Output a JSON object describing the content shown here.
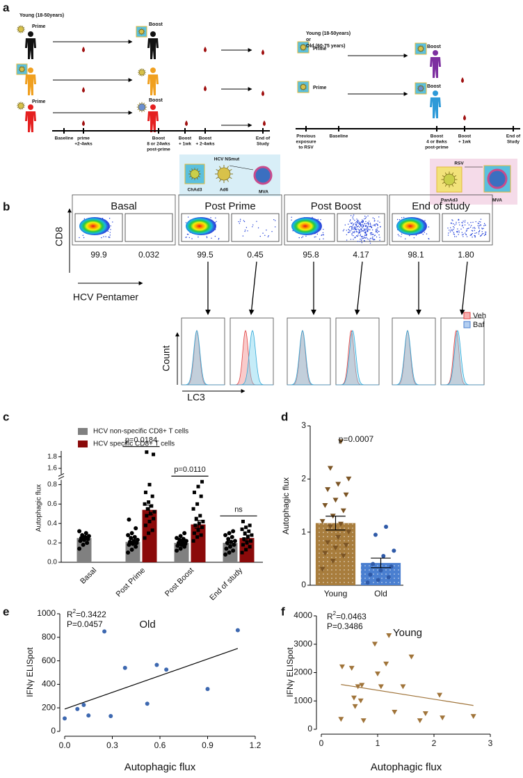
{
  "panel_labels": [
    "a",
    "b",
    "c",
    "d",
    "e",
    "f"
  ],
  "schematic": {
    "left": {
      "cohort": "Young (18-50years)",
      "prime": [
        "Prime",
        "Prime"
      ],
      "boost": [
        "Boost",
        "Boost"
      ],
      "timeline": [
        [
          "Baseline"
        ],
        [
          "prime",
          "+2-4wks"
        ],
        [
          "Boost",
          "8 or 24wks",
          "post-prime"
        ],
        [
          "Boost",
          "+ 1wk"
        ],
        [
          "Boost",
          "+ 2-4wks"
        ],
        [
          "End of",
          "Study"
        ]
      ],
      "vaccines": {
        "insert": "HCV NSmut",
        "vectors": [
          "ChAd3",
          "Ad6",
          "MVA"
        ]
      }
    },
    "right": {
      "cohort": [
        "Young (18-50years)",
        "or",
        "Old (60-75 years)"
      ],
      "prime": [
        "Prime",
        "Prime"
      ],
      "boost": [
        "Boost",
        "Boost"
      ],
      "timeline": [
        [
          "Previous",
          "exposure",
          "to RSV"
        ],
        [
          "Baseline"
        ],
        [
          "Boost",
          "4 or 8wks",
          "post-prime"
        ],
        [
          "Boost",
          "+ 1wk"
        ],
        [
          "End of",
          "Study"
        ]
      ],
      "vaccines": {
        "insert": "RSV",
        "vectors": [
          "PanAd3",
          "MVA"
        ]
      }
    }
  },
  "flow": {
    "timepoints": [
      "Basal",
      "Post Prime",
      "Post Boost",
      "End of study"
    ],
    "percentages": [
      [
        "99.9",
        "0.032"
      ],
      [
        "99.5",
        "0.45"
      ],
      [
        "95.8",
        "4.17"
      ],
      [
        "98.1",
        "1.80"
      ]
    ],
    "y_axis": "CD8",
    "x_axis": "HCV Pentamer",
    "histogram_y_axis": "Count",
    "histogram_x_axis": "LC3",
    "legend": [
      "Veh",
      "Baf"
    ]
  },
  "chart_data": [
    {
      "type": "bar",
      "ylabel": "Autophagic flux",
      "categories": [
        "Basal",
        "Post Prime",
        "Post Boost",
        "End of study"
      ],
      "series": [
        {
          "name": "HCV non-specific CD8+ T cells",
          "color": "#808080",
          "marker": "circle",
          "point_color": "#000000",
          "values": [
            0.25,
            0.21,
            0.2,
            0.2
          ],
          "errors": [
            0.02,
            0.025,
            0.015,
            0.02
          ],
          "points": [
            [
              0.14,
              0.18,
              0.2,
              0.22,
              0.23,
              0.24,
              0.25,
              0.26,
              0.27,
              0.28,
              0.3,
              0.32
            ],
            [
              0.1,
              0.13,
              0.16,
              0.18,
              0.19,
              0.2,
              0.21,
              0.22,
              0.23,
              0.25,
              0.26,
              0.28,
              0.3,
              0.35,
              0.44
            ],
            [
              0.12,
              0.14,
              0.16,
              0.17,
              0.18,
              0.19,
              0.2,
              0.21,
              0.22,
              0.23,
              0.24,
              0.25,
              0.27,
              0.3
            ],
            [
              0.08,
              0.1,
              0.12,
              0.14,
              0.16,
              0.18,
              0.2,
              0.21,
              0.22,
              0.24,
              0.26,
              0.28,
              0.3,
              0.32
            ]
          ]
        },
        {
          "name": "HCV specific CD8+ T cells",
          "color": "#8b0a0a",
          "marker": "square",
          "point_color": "#000000",
          "values": [
            null,
            0.54,
            0.39,
            0.25
          ],
          "errors": [
            null,
            0.05,
            0.04,
            0.03
          ],
          "points": [
            null,
            [
              0.25,
              0.3,
              0.33,
              0.38,
              0.42,
              0.45,
              0.48,
              0.5,
              0.52,
              0.55,
              0.58,
              0.6,
              0.62,
              0.68,
              0.72,
              0.8,
              1.84,
              1.88
            ],
            [
              0.22,
              0.26,
              0.28,
              0.3,
              0.33,
              0.36,
              0.38,
              0.4,
              0.42,
              0.45,
              0.48,
              0.55,
              0.6,
              0.68,
              0.72,
              0.78,
              0.83
            ],
            [
              0.1,
              0.13,
              0.16,
              0.18,
              0.2,
              0.22,
              0.24,
              0.26,
              0.28,
              0.3,
              0.32,
              0.34,
              0.36,
              0.38,
              0.42
            ]
          ]
        }
      ],
      "significance": [
        null,
        "p=0.0184",
        "p=0.0110",
        "ns"
      ],
      "ylim": [
        0,
        1.9
      ],
      "axis_break": [
        0.85,
        1.5
      ],
      "yticks": [
        {
          "value": 0,
          "label": "0.0"
        },
        0.2,
        0.4,
        0.6,
        0.8,
        1.6,
        1.8
      ]
    },
    {
      "type": "bar",
      "ylabel": "Autophagic flux",
      "categories": [
        "Young",
        "Old"
      ],
      "values": [
        1.17,
        0.42
      ],
      "errors": [
        0.13,
        0.09
      ],
      "colors": [
        "#a87d3d",
        "#4a7fd0"
      ],
      "pattern": "dots",
      "markers": [
        "triangle-down",
        "circle"
      ],
      "point_colors": [
        "#7b5424",
        "#2f5aa8"
      ],
      "points": [
        [
          0.3,
          0.45,
          0.55,
          0.6,
          0.7,
          0.75,
          0.8,
          0.9,
          1.0,
          1.1,
          1.15,
          1.2,
          1.3,
          1.4,
          1.5,
          1.6,
          1.7,
          1.8,
          1.9,
          2.0,
          2.2,
          2.7
        ],
        [
          0.05,
          0.1,
          0.15,
          0.2,
          0.28,
          0.35,
          0.4,
          0.55,
          0.65,
          0.95,
          1.1
        ]
      ],
      "annotation": "p=0.0007",
      "ylim": [
        0,
        3
      ],
      "yticks": [
        0,
        1,
        2,
        3
      ]
    },
    {
      "type": "scatter",
      "title": "Old",
      "r_squared": {
        "prefix": "R",
        "sup": "2",
        "value": "=0.3422"
      },
      "p_value": "P=0.0457",
      "xlabel": "Autophagic flux",
      "ylabel": "IFNγ ELISpot",
      "marker": "circle",
      "color": "#3d68b0",
      "x": [
        0,
        0.08,
        0.12,
        0.15,
        0.25,
        0.29,
        0.38,
        0.52,
        0.58,
        0.64,
        0.9,
        1.09
      ],
      "values": [
        110,
        190,
        225,
        135,
        850,
        130,
        540,
        235,
        565,
        525,
        360,
        860
      ],
      "trendline": {
        "x": [
          0,
          1.09
        ],
        "values": [
          190,
          705
        ],
        "color": "#000000"
      },
      "xlim": [
        0,
        1.2
      ],
      "xticks": [
        {
          "value": 0,
          "label": "0.0"
        },
        0.3,
        0.6,
        0.9,
        1.2
      ],
      "ylim": [
        0,
        1000
      ],
      "yticks": [
        0,
        200,
        400,
        600,
        800,
        1000
      ]
    },
    {
      "type": "scatter",
      "title": "Young",
      "r_squared": {
        "prefix": "R",
        "sup": "2",
        "value": "=0.0463"
      },
      "p_value": "P=0.3486",
      "xlabel": "Autophagic flux",
      "ylabel": "IFNγ ELISpot",
      "marker": "triangle-down",
      "color": "#a0743a",
      "x": [
        0.35,
        0.37,
        0.54,
        0.58,
        0.6,
        0.65,
        0.72,
        0.75,
        0.95,
        1.0,
        1.06,
        1.15,
        1.2,
        1.3,
        1.45,
        1.6,
        1.75,
        1.85,
        2.1,
        2.15,
        2.7,
        0.7
      ],
      "values": [
        350,
        2200,
        2150,
        1100,
        800,
        1500,
        1550,
        300,
        3000,
        1950,
        1500,
        2300,
        3300,
        600,
        1500,
        2550,
        300,
        550,
        1200,
        400,
        450,
        1000
      ],
      "trendline": {
        "x": [
          0.35,
          2.7
        ],
        "values": [
          1580,
          840
        ],
        "color": "#a0743a"
      },
      "xlim": [
        0,
        3
      ],
      "xticks": [
        0,
        1,
        2,
        3
      ],
      "ylim": [
        0,
        4000
      ],
      "yticks": [
        0,
        1000,
        2000,
        3000,
        4000
      ]
    }
  ]
}
